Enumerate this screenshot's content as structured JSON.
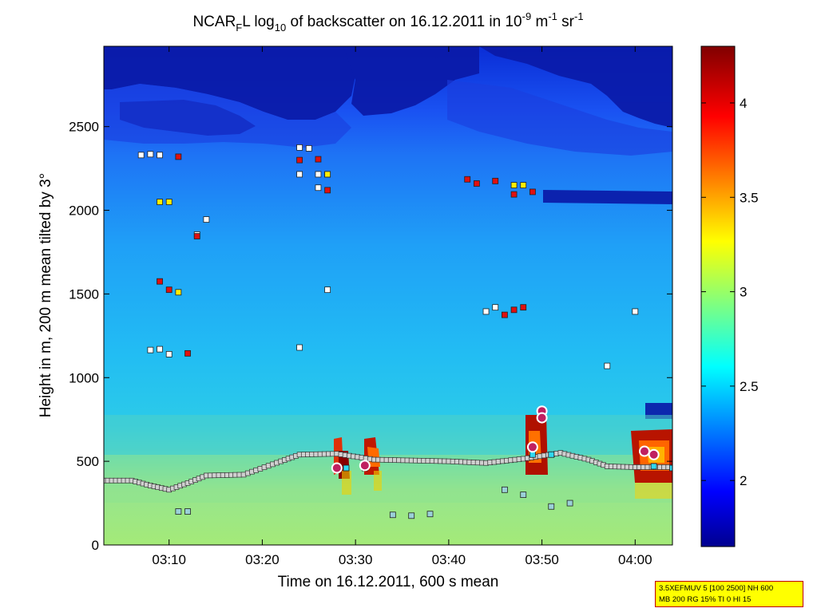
{
  "chart_data": {
    "type": "heatmap",
    "title": "NCAR_F L log10 of backscatter on 16.12.2011 in 10-9 m-1 sr-1",
    "title_parts": {
      "a": "NCAR",
      "sub_f": "F",
      "b": "L log",
      "sub_10": "10",
      "c": " of backscatter on 16.12.2011 in 10",
      "sup_m9": "-9",
      "d": " m",
      "sup_m1": "-1",
      "e": " sr",
      "sup_m1b": "-1"
    },
    "xlabel": "Time on 16.12.2011, 600 s mean",
    "ylabel": "Height in m, 200 m mean tilted by 3°",
    "xlim": [
      "03:03",
      "04:04"
    ],
    "ylim": [
      0,
      2980
    ],
    "x_ticks": [
      "03:10",
      "03:20",
      "03:30",
      "03:40",
      "03:50",
      "04:00"
    ],
    "y_ticks": [
      0,
      500,
      1000,
      1500,
      2000,
      2500
    ],
    "colorbar": {
      "range": [
        1.65,
        4.3
      ],
      "ticks": [
        2,
        2.5,
        3,
        3.5,
        4
      ],
      "colormap": "jet"
    },
    "grid": false,
    "markers": {
      "white_squares": [
        {
          "time": "03:07",
          "height": 2330
        },
        {
          "time": "03:08",
          "height": 2335
        },
        {
          "time": "03:09",
          "height": 2330
        },
        {
          "time": "03:24",
          "height": 2375
        },
        {
          "time": "03:25",
          "height": 2370
        },
        {
          "time": "03:24",
          "height": 2215
        },
        {
          "time": "03:26",
          "height": 2215
        },
        {
          "time": "03:27",
          "height": 2215
        },
        {
          "time": "03:26",
          "height": 2135
        },
        {
          "time": "03:13",
          "height": 1855
        },
        {
          "time": "03:14",
          "height": 1945
        },
        {
          "time": "03:08",
          "height": 1165
        },
        {
          "time": "03:09",
          "height": 1170
        },
        {
          "time": "03:10",
          "height": 1140
        },
        {
          "time": "03:24",
          "height": 1180
        },
        {
          "time": "03:27",
          "height": 1525
        },
        {
          "time": "03:44",
          "height": 1395
        },
        {
          "time": "03:45",
          "height": 1420
        },
        {
          "time": "03:57",
          "height": 1070
        },
        {
          "time": "04:00",
          "height": 1395
        }
      ],
      "red_squares": [
        {
          "time": "03:11",
          "height": 2320
        },
        {
          "time": "03:24",
          "height": 2300
        },
        {
          "time": "03:26",
          "height": 2305
        },
        {
          "time": "03:27",
          "height": 2120
        },
        {
          "time": "03:13",
          "height": 1845
        },
        {
          "time": "03:09",
          "height": 1575
        },
        {
          "time": "03:10",
          "height": 1525
        },
        {
          "time": "03:12",
          "height": 1145
        },
        {
          "time": "03:42",
          "height": 2185
        },
        {
          "time": "03:43",
          "height": 2160
        },
        {
          "time": "03:45",
          "height": 2175
        },
        {
          "time": "03:47",
          "height": 2095
        },
        {
          "time": "03:49",
          "height": 2110
        },
        {
          "time": "03:46",
          "height": 1375
        },
        {
          "time": "03:47",
          "height": 1405
        },
        {
          "time": "03:48",
          "height": 1420
        }
      ],
      "yellow_squares": [
        {
          "time": "03:09",
          "height": 2050
        },
        {
          "time": "03:10",
          "height": 2050
        },
        {
          "time": "03:11",
          "height": 1510
        },
        {
          "time": "03:27",
          "height": 2215
        },
        {
          "time": "03:47",
          "height": 2150
        },
        {
          "time": "03:48",
          "height": 2150
        }
      ],
      "boundary_layer_height": [
        {
          "time": "03:03",
          "height": 385
        },
        {
          "time": "03:06",
          "height": 385
        },
        {
          "time": "03:08",
          "height": 355
        },
        {
          "time": "03:10",
          "height": 330
        },
        {
          "time": "03:12",
          "height": 370
        },
        {
          "time": "03:14",
          "height": 415
        },
        {
          "time": "03:18",
          "height": 420
        },
        {
          "time": "03:22",
          "height": 500
        },
        {
          "time": "03:24",
          "height": 540
        },
        {
          "time": "03:28",
          "height": 545
        },
        {
          "time": "03:32",
          "height": 510
        },
        {
          "time": "03:36",
          "height": 505
        },
        {
          "time": "03:40",
          "height": 500
        },
        {
          "time": "03:44",
          "height": 490
        },
        {
          "time": "03:48",
          "height": 515
        },
        {
          "time": "03:52",
          "height": 550
        },
        {
          "time": "03:55",
          "height": 510
        },
        {
          "time": "03:57",
          "height": 470
        },
        {
          "time": "04:00",
          "height": 465
        },
        {
          "time": "04:04",
          "height": 465
        }
      ],
      "cyan_squares": [
        {
          "time": "03:29",
          "height": 460
        },
        {
          "time": "03:31",
          "height": 460
        },
        {
          "time": "03:49",
          "height": 540
        },
        {
          "time": "03:51",
          "height": 540
        },
        {
          "time": "04:02",
          "height": 470
        },
        {
          "time": "04:04",
          "height": 460
        }
      ],
      "low_cloud_segments": [
        {
          "time": "03:11",
          "height": 200
        },
        {
          "time": "03:12",
          "height": 200
        },
        {
          "time": "03:34",
          "height": 180
        },
        {
          "time": "03:36",
          "height": 175
        },
        {
          "time": "03:38",
          "height": 185
        },
        {
          "time": "03:46",
          "height": 330
        },
        {
          "time": "03:48",
          "height": 300
        },
        {
          "time": "03:51",
          "height": 230
        },
        {
          "time": "03:53",
          "height": 250
        }
      ],
      "circles": [
        {
          "time": "03:28",
          "height": 460
        },
        {
          "time": "03:31",
          "height": 475
        },
        {
          "time": "03:50",
          "height": 800
        },
        {
          "time": "03:50",
          "height": 760
        },
        {
          "time": "03:49",
          "height": 585
        },
        {
          "time": "04:01",
          "height": 560
        },
        {
          "time": "04:02",
          "height": 540
        }
      ]
    }
  },
  "info_box": {
    "line1": "3.5XEFMUV 5 [100 2500] NH 600",
    "line2": "MB 200 RG 15% TI 0 HI 15"
  },
  "colors": {
    "frame": "#000000",
    "info_bg": "#ffff00",
    "info_border": "#c00000"
  }
}
